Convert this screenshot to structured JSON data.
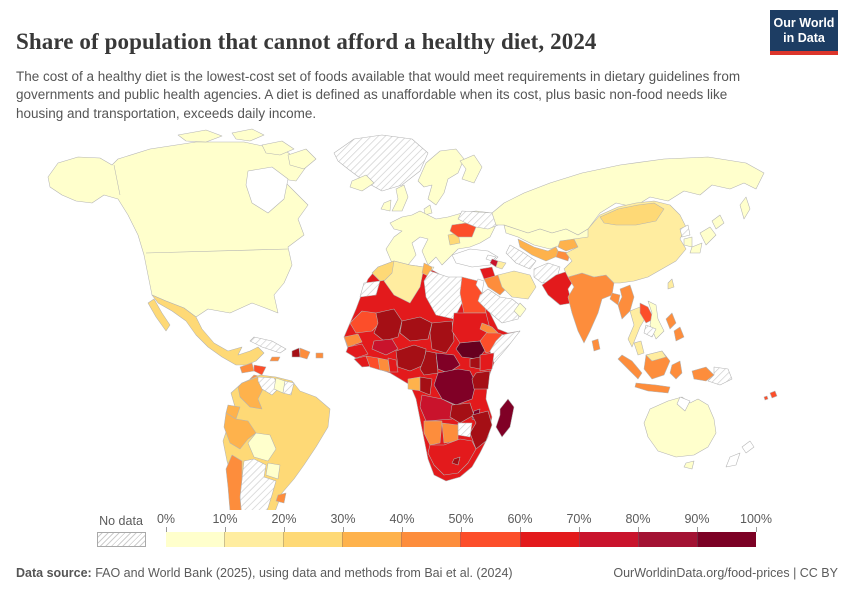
{
  "header": {
    "title": "Share of population that cannot afford a healthy diet, 2024",
    "subtitle": "The cost of a healthy diet is the lowest-cost set of foods available that would meet requirements in dietary guidelines from governments and public health agencies. A diet is defined as unaffordable when its cost, plus basic non-food needs like housing and transportation, exceeds daily income.",
    "logo_line1": "Our World",
    "logo_line2": "in Data",
    "logo_bg": "#1d3d63",
    "logo_stripe": "#dc352b"
  },
  "legend": {
    "no_data_label": "No data",
    "tick_labels": [
      "0%",
      "10%",
      "20%",
      "30%",
      "40%",
      "50%",
      "60%",
      "70%",
      "80%",
      "90%",
      "100%"
    ],
    "colors": [
      "#FFFFCC",
      "#FFEDA0",
      "#FED976",
      "#FEB24C",
      "#FD8D3C",
      "#FC4E2A",
      "#E31A1C",
      "#C9132C",
      "#A31233",
      "#7C0125"
    ]
  },
  "footer": {
    "source_label": "Data source:",
    "source_text": " FAO and World Bank (2025), using data and methods from Bai et al. (2024)",
    "right_text": "OurWorldinData.org/food-prices | CC BY"
  },
  "map": {
    "regions": {
      "greenland": "no-data",
      "canada-usa": "#FFFFCC",
      "mexico": "#FED976",
      "guatemala": "#FD8D3C",
      "honduras": "#FC4E2A",
      "nicaragua-panama": "#FD8D3C",
      "cuba": "no-data",
      "jamaica": "#FD8D3C",
      "haiti": "#A50F15",
      "dominican-republic": "#FD8D3C",
      "puerto-rico": "#FD8D3C",
      "brazil": "#FED976",
      "colombia": "#FEB24C",
      "venezuela": "no-data",
      "guyana": "#FFFFCC",
      "suriname": "no-data",
      "ecuador": "#FEB24C",
      "peru": "#FEB24C",
      "bolivia": "#FFFFCC",
      "paraguay": "#FFFFCC",
      "argentina": "no-data",
      "chile": "#FD8D3C",
      "uruguay": "#FD8D3C",
      "europe": "#FFFFCC",
      "balkans": "#FED976",
      "romania": "#FC4E2A",
      "ukraine": "no-data",
      "russia": "#FFFFCC",
      "africa-base": "#E31A1C",
      "morocco": "#FED976",
      "west-sahara": "no-data",
      "algeria": "#FFEDA0",
      "tunisia": "#FEB24C",
      "libya": "no-data",
      "egypt": "#FC4E2A",
      "mauritania": "#FC4E2A",
      "mali": "#A50F15",
      "niger": "#A50F15",
      "chad": "#A50F15",
      "sudan": "#E31A1C",
      "south-sudan": "#67001F",
      "senegal": "#FD8D3C",
      "guinea": "#E31A1C",
      "sierra-leone-liberia": "#E31A1C",
      "ivory-coast": "#FC4E2A",
      "ghana": "#FD8D3C",
      "togo-benin": "#E31A1C",
      "burkina-faso": "#C9132C",
      "nigeria": "#A50F15",
      "cameroon": "#A50F15",
      "central-african-republic": "#800026",
      "ethiopia": "#FC4E2A",
      "eritrea": "#FD8D3C",
      "somalia": "no-data",
      "kenya": "#E31A1C",
      "uganda": "#A50F15",
      "drc": "#800026",
      "gabon": "#FEB24C",
      "congo": "#A50F15",
      "tanzania": "#A50F15",
      "angola": "#C9132C",
      "zambia": "#A50F15",
      "malawi": "#800026",
      "mozambique": "#A50F15",
      "zimbabwe": "no-data",
      "namibia": "#FD8D3C",
      "botswana": "#FD8D3C",
      "south-africa": "#E31A1C",
      "lesotho": "#A50F15",
      "madagascar": "#800026",
      "turkey": "#FFFFFF",
      "syria": "#E31A1C",
      "iraq": "#FD8D3C",
      "israel-jordan": "#FFFFFF",
      "saudi-arabia": "no-data",
      "oman": "#FFFFCC",
      "iran": "#FFEDA0",
      "armenia": "#C9132C",
      "azerbaijan": "#FFEDA0",
      "georgia": "#FFFFFF",
      "kazakhstan": "#FFFFCC",
      "uzbekistan": "#FEB24C",
      "turkmenistan": "no-data",
      "kyrgyzstan": "#FEB24C",
      "tajikistan": "#FD8D3C",
      "afghanistan": "no-data",
      "pakistan": "#E31A1C",
      "india": "#FD8D3C",
      "bangladesh": "#FD8D3C",
      "sri-lanka": "#FD8D3C",
      "myanmar": "#FD8D3C",
      "china": "#FFEDA0",
      "mongolia": "#FED976",
      "north-korea": "no-data",
      "south-korea": "#FFFFCC",
      "japan": "#FFFFCC",
      "taiwan": "#FFEDA0",
      "thailand": "#FFEDA0",
      "laos": "#FC4E2A",
      "vietnam": "#FFFFCC",
      "cambodia": "no-data",
      "malaysia": "#FFEDA0",
      "indonesia": "#FD8D3C",
      "philippines": "#FD8D3C",
      "papua-new-guinea": "no-data",
      "fiji": "#FC4E2A",
      "australia": "#FFFFCC",
      "new-zealand": "#FFFFFF"
    }
  }
}
